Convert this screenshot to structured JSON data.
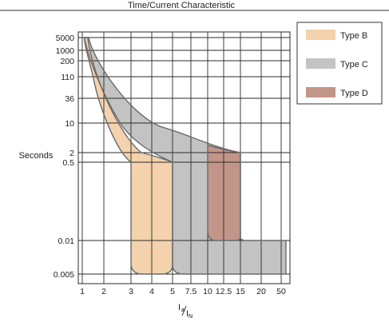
{
  "chart_data": {
    "type": "area",
    "title": "Time/Current Characteristic",
    "ylabel": "Seconds",
    "xlabel": {
      "main": "I",
      "sub_numerator": "a",
      "sub_denominator": "N"
    },
    "x_ticks": [
      "1",
      "2",
      "3",
      "4",
      "5",
      "7.5",
      "10",
      "12.5",
      "15",
      "20",
      "50"
    ],
    "y_ticks": [
      "5000",
      "1000",
      "200",
      "110",
      "36",
      "10",
      "2",
      "0.5",
      "0.01",
      "0.005"
    ],
    "grid": true,
    "legend_position": "right",
    "series": [
      {
        "name": "Type B",
        "color": "#f3d2ad",
        "upper_curve": [
          [
            1.2,
            5000
          ],
          [
            1.5,
            200
          ],
          [
            2,
            30
          ],
          [
            2.5,
            6
          ],
          [
            3,
            1.2
          ]
        ],
        "lower_curve": [
          [
            1.1,
            5000
          ],
          [
            1.3,
            300
          ],
          [
            1.7,
            36
          ],
          [
            2.3,
            4
          ],
          [
            3,
            1.2
          ]
        ],
        "instant_trip_range": [
          3,
          5
        ],
        "min_time": 0.005
      },
      {
        "name": "Type C",
        "color": "#c3c3c3",
        "upper_curve": [
          [
            1.3,
            5000
          ],
          [
            2,
            110
          ],
          [
            4,
            10
          ],
          [
            7.5,
            5
          ],
          [
            10,
            3
          ],
          [
            15,
            2
          ]
        ],
        "lower_curve": [
          [
            1.1,
            5000
          ],
          [
            2,
            36
          ],
          [
            3,
            10
          ],
          [
            4,
            3
          ],
          [
            5,
            1.2
          ]
        ],
        "instant_trip_range": [
          5,
          10
        ],
        "min_time": 0.005
      },
      {
        "name": "Type D",
        "color": "#c29589",
        "upper_curve": [
          [
            10,
            3
          ],
          [
            15,
            2
          ]
        ],
        "instant_trip_range": [
          10,
          20
        ],
        "min_time": 0.005
      }
    ],
    "legend": [
      "Type B",
      "Type C",
      "Type D"
    ]
  }
}
